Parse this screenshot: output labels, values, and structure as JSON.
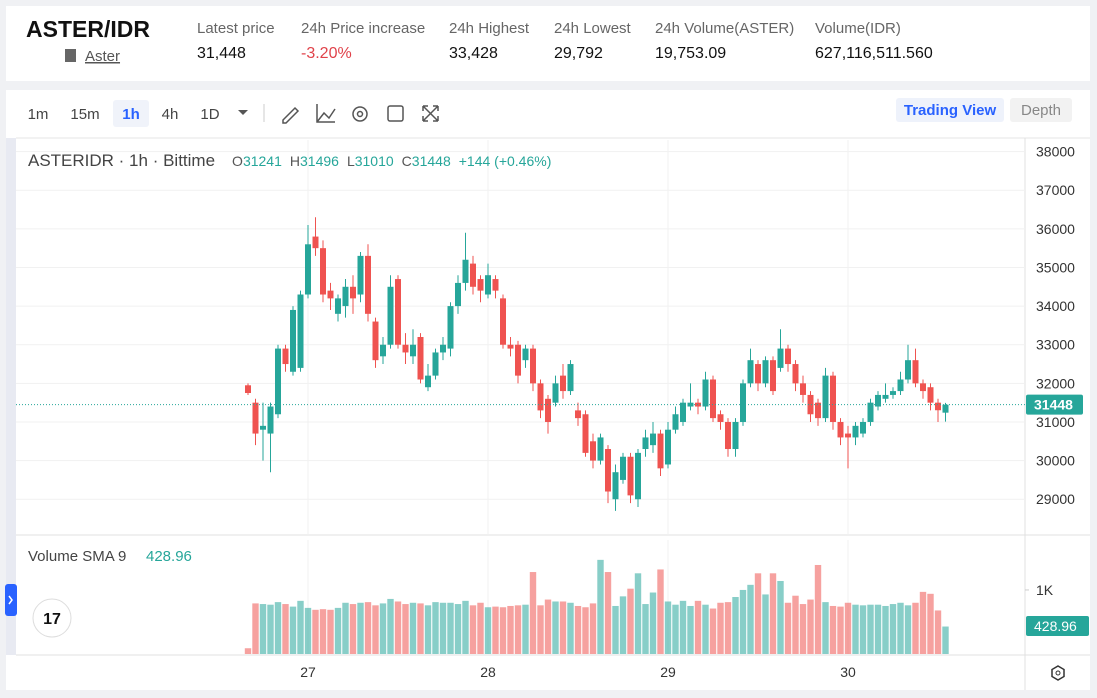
{
  "header": {
    "symbol": "ASTER/IDR",
    "link": "Aster",
    "stats": [
      {
        "label": "Latest price",
        "value": "31,448"
      },
      {
        "label": "24h Price increase",
        "value": "-3.20%"
      },
      {
        "label": "24h Highest",
        "value": "33,428"
      },
      {
        "label": "24h Lowest",
        "value": "29,792"
      },
      {
        "label": "24h Volume(ASTER)",
        "value": "19,753.09"
      },
      {
        "label": "Volume(IDR)",
        "value": "627,116,511.560"
      }
    ]
  },
  "toolbar": {
    "intervals": [
      "1m",
      "15m",
      "1h",
      "4h",
      "1D"
    ],
    "views": [
      "Trading View",
      "Depth"
    ]
  },
  "chart_data": {
    "type": "candlestick",
    "title": "ASTERIDR · 1h · Bittime",
    "ohlc_labels": [
      "O",
      "H",
      "L",
      "C"
    ],
    "change": "+144 (+0.46%)",
    "categories": [
      null,
      null,
      null,
      null,
      null,
      null,
      null,
      null,
      "27",
      null,
      null,
      null,
      null,
      null,
      null,
      null,
      null,
      null,
      null,
      null,
      null,
      null,
      null,
      null,
      null,
      null,
      null,
      null,
      null,
      null,
      null,
      null,
      "28",
      null,
      null,
      null,
      null,
      null,
      null,
      null,
      null,
      null,
      null,
      null,
      null,
      null,
      null,
      null,
      null,
      null,
      null,
      null,
      null,
      null,
      null,
      null,
      "29",
      null,
      null,
      null,
      null,
      null,
      null,
      null,
      null,
      null,
      null,
      null,
      null,
      null,
      null,
      null,
      null,
      null,
      null,
      null,
      null,
      null,
      null,
      null,
      "30",
      null,
      null,
      null,
      null,
      null,
      null,
      null,
      null,
      null,
      null,
      null,
      null,
      null
    ],
    "open": [
      31950,
      31500,
      30800,
      30700,
      31200,
      32900,
      32300,
      32400,
      34300,
      35800,
      35500,
      34400,
      33800,
      34000,
      34500,
      34300,
      35300,
      33600,
      32700,
      33000,
      34700,
      33000,
      32700,
      33200,
      31900,
      32200,
      32800,
      32900,
      34000,
      34600,
      35100,
      34700,
      34300,
      34700,
      34200,
      33000,
      33000,
      32600,
      32900,
      32000,
      31600,
      31500,
      32200,
      31800,
      31300,
      31200,
      30500,
      30000,
      30300,
      29000,
      29500,
      30100,
      29000,
      30300,
      30400,
      30700,
      29900,
      30800,
      31000,
      31400,
      31500,
      31400,
      32100,
      31200,
      31000,
      30300,
      31000,
      32000,
      32500,
      32000,
      32600,
      32400,
      32900,
      32500,
      32000,
      31700,
      31500,
      31100,
      32200,
      31000,
      30700,
      30600,
      30700,
      31000,
      31400,
      31600,
      31700,
      31800,
      32100,
      32600,
      32000,
      31900,
      31500,
      31241
    ],
    "high": [
      32000,
      31600,
      31500,
      31500,
      33000,
      33000,
      34000,
      34400,
      36100,
      36300,
      35700,
      34600,
      34300,
      34700,
      34800,
      35400,
      35600,
      33700,
      33200,
      34800,
      34800,
      33300,
      33400,
      33300,
      32500,
      32900,
      33200,
      34100,
      34800,
      35900,
      35300,
      34800,
      35100,
      34800,
      34300,
      33200,
      33100,
      33000,
      33000,
      32100,
      31700,
      32200,
      32500,
      32600,
      31500,
      31300,
      30700,
      30700,
      30400,
      29900,
      30200,
      30200,
      30300,
      30800,
      31000,
      30800,
      31000,
      31400,
      31600,
      32000,
      31600,
      32300,
      32200,
      31300,
      31100,
      31100,
      32100,
      32900,
      32600,
      32700,
      32700,
      33400,
      33000,
      32600,
      32200,
      31800,
      31600,
      32400,
      32300,
      31100,
      30900,
      31000,
      31100,
      31600,
      31800,
      32000,
      31900,
      32300,
      33000,
      32900,
      32100,
      32000,
      31600,
      31496
    ],
    "low": [
      31700,
      30400,
      30000,
      29700,
      31100,
      32300,
      32200,
      32300,
      34200,
      35300,
      34100,
      33900,
      33600,
      33700,
      33800,
      34100,
      33600,
      32400,
      32500,
      32900,
      32900,
      32500,
      32500,
      32000,
      31800,
      32100,
      32600,
      32700,
      33800,
      34400,
      34300,
      34100,
      34200,
      34200,
      32900,
      32700,
      32000,
      32400,
      31800,
      31100,
      30700,
      31400,
      31600,
      31700,
      30900,
      30100,
      29800,
      29900,
      28900,
      28700,
      29400,
      28900,
      28800,
      30100,
      30200,
      29600,
      29800,
      30700,
      30900,
      31300,
      31200,
      31300,
      31000,
      30800,
      30100,
      30100,
      30900,
      31900,
      31800,
      31900,
      31700,
      32300,
      32300,
      31800,
      31500,
      31000,
      30900,
      31000,
      30800,
      30400,
      29800,
      30400,
      30600,
      30900,
      31300,
      31500,
      31600,
      31700,
      32000,
      31900,
      31600,
      31300,
      31000,
      31010
    ],
    "close": [
      31750,
      30700,
      30900,
      31400,
      32900,
      32500,
      33900,
      34300,
      35600,
      35500,
      34300,
      34200,
      34200,
      34500,
      34200,
      35300,
      33800,
      32600,
      33000,
      34500,
      33000,
      32800,
      33000,
      32100,
      32200,
      32800,
      33000,
      34000,
      34600,
      35200,
      34500,
      34400,
      34800,
      34400,
      33000,
      32900,
      32200,
      32900,
      32000,
      31300,
      31000,
      32000,
      31800,
      32500,
      31100,
      30200,
      30000,
      30600,
      29200,
      29700,
      30100,
      29100,
      30200,
      30600,
      30700,
      29800,
      30800,
      31200,
      31500,
      31500,
      31400,
      32100,
      31100,
      31000,
      30300,
      31000,
      32000,
      32600,
      32000,
      32600,
      31800,
      32900,
      32500,
      32000,
      31700,
      31200,
      31100,
      32200,
      31000,
      30600,
      30600,
      30900,
      31000,
      31500,
      31700,
      31700,
      31800,
      32100,
      32600,
      32000,
      31800,
      31500,
      31304,
      31448
    ],
    "ylim": [
      28100,
      38300
    ],
    "yticks": [
      29000,
      30000,
      31000,
      32000,
      33000,
      34000,
      35000,
      36000,
      37000,
      38000
    ],
    "grid": true,
    "up_color": "#26a69a",
    "down_color": "#ef5350",
    "volume": {
      "name": "Volume SMA 9",
      "values": [
        90,
        790,
        780,
        770,
        810,
        780,
        740,
        830,
        720,
        690,
        700,
        690,
        720,
        800,
        780,
        800,
        810,
        760,
        790,
        860,
        820,
        780,
        800,
        790,
        760,
        810,
        800,
        800,
        780,
        830,
        760,
        800,
        730,
        740,
        730,
        750,
        760,
        770,
        1280,
        760,
        850,
        820,
        820,
        800,
        750,
        730,
        790,
        1470,
        1280,
        750,
        900,
        1020,
        1260,
        780,
        960,
        1320,
        820,
        770,
        830,
        750,
        830,
        770,
        710,
        800,
        810,
        890,
        1000,
        1080,
        1260,
        930,
        1260,
        1140,
        800,
        910,
        780,
        850,
        1390,
        810,
        750,
        740,
        800,
        770,
        760,
        770,
        770,
        750,
        780,
        800,
        760,
        800,
        970,
        940,
        680,
        428.96
      ],
      "ylim": [
        0,
        1780
      ],
      "yticks": [
        {
          "value": 1000,
          "label": "1K"
        }
      ]
    }
  }
}
